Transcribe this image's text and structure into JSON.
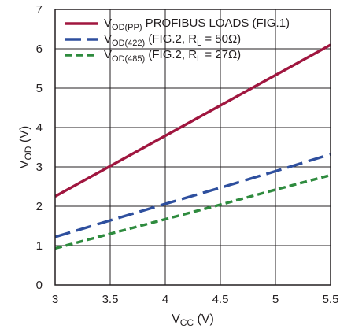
{
  "chart_data": {
    "type": "line",
    "xlabel": {
      "main": "V",
      "sub": "CC",
      "unit": " (V)"
    },
    "ylabel": {
      "main": "V",
      "sub": "OD",
      "unit": " (V)"
    },
    "xlim": [
      3,
      5.5
    ],
    "ylim": [
      0,
      7
    ],
    "xticks": [
      {
        "v": 3,
        "label": "3"
      },
      {
        "v": 3.5,
        "label": "3.5"
      },
      {
        "v": 4,
        "label": "4"
      },
      {
        "v": 4.5,
        "label": "4.5"
      },
      {
        "v": 5,
        "label": "5"
      },
      {
        "v": 5.5,
        "label": "5.5"
      }
    ],
    "yticks": [
      {
        "v": 0,
        "label": "0"
      },
      {
        "v": 1,
        "label": "1"
      },
      {
        "v": 2,
        "label": "2"
      },
      {
        "v": 3,
        "label": "3"
      },
      {
        "v": 4,
        "label": "4"
      },
      {
        "v": 5,
        "label": "5"
      },
      {
        "v": 6,
        "label": "6"
      },
      {
        "v": 7,
        "label": "7"
      }
    ],
    "grid": true,
    "legend_position": "top-left",
    "series": [
      {
        "name": "V_OD(PP) PROFIBUS LOADS (FIG.1)",
        "color": "#a0163f",
        "dash": "solid",
        "x": [
          3,
          3.5,
          4,
          4.5,
          5,
          5.5
        ],
        "y": [
          2.25,
          3.02,
          3.79,
          4.56,
          5.33,
          6.1
        ],
        "legend": [
          {
            "t": "V"
          },
          {
            "t": "OD(PP)",
            "sub": true
          },
          {
            "t": " PROFIBUS LOADS (FIG.1)"
          }
        ]
      },
      {
        "name": "V_OD(422) (FIG.2, R_L = 50Ω)",
        "color": "#2e4f9e",
        "dash": "long",
        "x": [
          3,
          3.5,
          4,
          4.5,
          5,
          5.5
        ],
        "y": [
          1.22,
          1.64,
          2.06,
          2.47,
          2.89,
          3.32
        ],
        "legend": [
          {
            "t": "V"
          },
          {
            "t": "OD(422)",
            "sub": true
          },
          {
            "t": " (FIG.2, R"
          },
          {
            "t": "L",
            "sub": true
          },
          {
            "t": " = 50Ω)"
          }
        ]
      },
      {
        "name": "V_OD(485) (FIG.2, R_L = 27Ω)",
        "color": "#2e8b3e",
        "dash": "short",
        "x": [
          3,
          3.5,
          4,
          4.5,
          5,
          5.5
        ],
        "y": [
          0.93,
          1.3,
          1.67,
          2.04,
          2.42,
          2.79
        ],
        "legend": [
          {
            "t": "V"
          },
          {
            "t": "OD(485)",
            "sub": true
          },
          {
            "t": " (FIG.2, R"
          },
          {
            "t": "L",
            "sub": true
          },
          {
            "t": " = 27Ω)"
          }
        ]
      }
    ]
  }
}
